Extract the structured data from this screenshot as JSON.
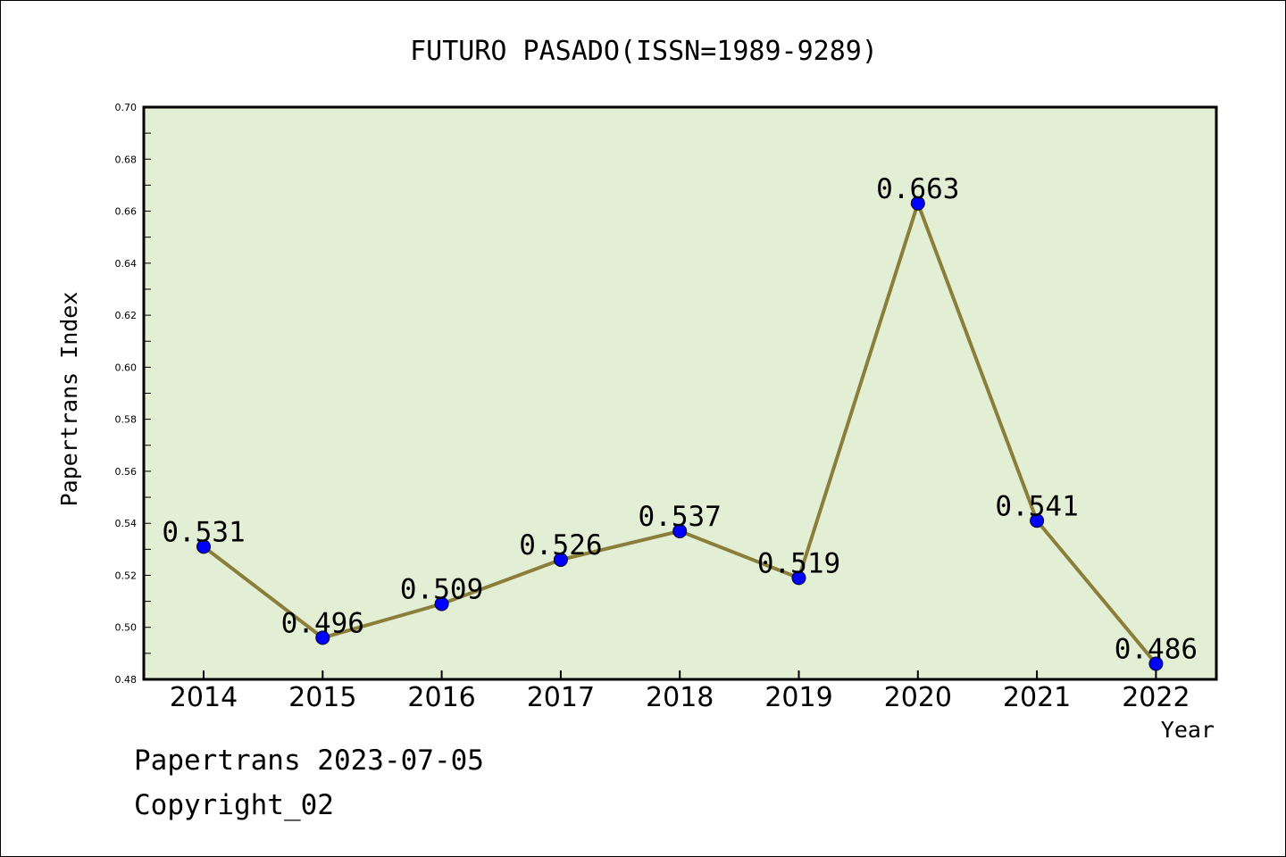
{
  "chart_data": {
    "type": "line",
    "title": "FUTURO PASADO(ISSN=1989-9289)",
    "xlabel": "Year",
    "ylabel": "Papertrans Index",
    "categories": [
      "2014",
      "2015",
      "2016",
      "2017",
      "2018",
      "2019",
      "2020",
      "2021",
      "2022"
    ],
    "series": [
      {
        "values": [
          0.531,
          0.496,
          0.509,
          0.526,
          0.537,
          0.519,
          0.663,
          0.541,
          0.486
        ],
        "data_labels": [
          "0.531",
          "0.496",
          "0.509",
          "0.526",
          "0.537",
          "0.519",
          "0.663",
          "0.541",
          "0.486"
        ]
      }
    ],
    "ylim": [
      0.48,
      0.7
    ],
    "y_ticks": [
      "0.48",
      "0.50",
      "0.52",
      "0.54",
      "0.56",
      "0.58",
      "0.60",
      "0.62",
      "0.64",
      "0.66",
      "0.68",
      "0.70"
    ],
    "grid": false,
    "legend": "none",
    "colors": {
      "plot_background": "#e2efd5",
      "line": "#8b7d3a",
      "marker": "#0000ff",
      "axis": "#000000"
    }
  },
  "footer": {
    "line1": "Papertrans 2023-07-05",
    "line2": "Copyright_02"
  }
}
